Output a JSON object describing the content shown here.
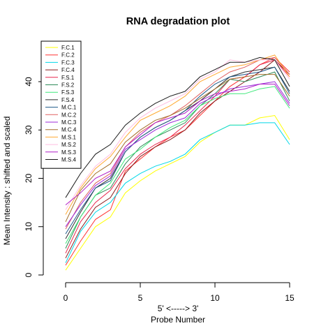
{
  "chart_data": {
    "type": "line",
    "title": "RNA degradation plot",
    "xlabel_top": "5' <-----> 3'",
    "xlabel": "Probe Number",
    "ylabel": "Mean Intensity : shifted and scaled",
    "xlim": [
      0,
      15
    ],
    "ylim": [
      0,
      46
    ],
    "xticks": [
      0,
      5,
      10,
      15
    ],
    "yticks": [
      0,
      10,
      20,
      30,
      40
    ],
    "legend_position": "top-left",
    "x": [
      0,
      1,
      2,
      3,
      4,
      5,
      6,
      7,
      8,
      9,
      10,
      11,
      12,
      13,
      14,
      15
    ],
    "series": [
      {
        "name": "F.C.1",
        "color": "#ffff00",
        "values": [
          1.0,
          5.5,
          10.0,
          12.0,
          17.0,
          19.5,
          21.5,
          23.0,
          24.5,
          27.5,
          29.5,
          31.0,
          31.0,
          32.5,
          33.0,
          28.0
        ]
      },
      {
        "name": "F.C.2",
        "color": "#ff3333",
        "values": [
          2.0,
          7.0,
          11.5,
          13.5,
          21.5,
          24.0,
          26.5,
          28.5,
          30.0,
          33.0,
          36.0,
          39.0,
          41.0,
          43.5,
          45.0,
          42.0
        ]
      },
      {
        "name": "F.C.3",
        "color": "#00d7e8",
        "values": [
          2.5,
          9.0,
          13.0,
          15.0,
          19.0,
          21.0,
          22.5,
          23.5,
          25.0,
          28.0,
          29.5,
          31.0,
          31.0,
          31.5,
          31.5,
          27.0
        ]
      },
      {
        "name": "F.C.4",
        "color": "#8b1a1a",
        "values": [
          3.5,
          9.5,
          14.0,
          16.0,
          21.0,
          24.5,
          26.5,
          28.0,
          30.0,
          33.5,
          36.0,
          38.0,
          40.0,
          42.0,
          44.5,
          41.5
        ]
      },
      {
        "name": "F.S.1",
        "color": "#e8264d",
        "values": [
          4.5,
          11.0,
          15.0,
          17.5,
          22.0,
          25.0,
          27.0,
          28.5,
          31.0,
          34.0,
          37.0,
          40.5,
          41.0,
          43.5,
          44.5,
          41.0
        ]
      },
      {
        "name": "F.S.2",
        "color": "#2e8b57",
        "values": [
          5.5,
          12.0,
          16.5,
          18.0,
          23.0,
          26.5,
          28.5,
          30.0,
          31.5,
          35.0,
          37.5,
          40.5,
          40.0,
          41.0,
          42.0,
          36.0
        ]
      },
      {
        "name": "F.S.3",
        "color": "#3ee87a",
        "values": [
          6.5,
          12.0,
          16.5,
          19.0,
          24.0,
          26.0,
          28.5,
          30.5,
          32.0,
          35.0,
          36.5,
          37.5,
          37.5,
          38.5,
          39.0,
          34.5
        ]
      },
      {
        "name": "F.S.4",
        "color": "#2f2f2f",
        "values": [
          7.5,
          13.0,
          18.0,
          20.0,
          25.5,
          28.5,
          30.5,
          32.0,
          34.0,
          36.0,
          38.5,
          41.0,
          42.0,
          42.5,
          43.0,
          38.0
        ]
      },
      {
        "name": "M.C.1",
        "color": "#1e5a8a",
        "values": [
          8.5,
          13.5,
          18.0,
          19.5,
          25.5,
          28.5,
          30.5,
          32.0,
          34.0,
          37.0,
          39.5,
          41.0,
          41.5,
          42.0,
          43.0,
          37.5
        ]
      },
      {
        "name": "M.C.2",
        "color": "#e06060",
        "values": [
          9.5,
          15.0,
          19.0,
          21.0,
          26.5,
          29.5,
          31.5,
          33.0,
          35.0,
          37.5,
          40.0,
          42.0,
          43.0,
          44.5,
          45.0,
          41.5
        ]
      },
      {
        "name": "M.C.3",
        "color": "#9c2bd9",
        "values": [
          10.0,
          14.5,
          18.5,
          20.5,
          26.0,
          28.0,
          30.0,
          31.5,
          32.5,
          35.5,
          37.0,
          38.5,
          39.0,
          39.5,
          40.0,
          35.5
        ]
      },
      {
        "name": "M.C.4",
        "color": "#a36f2a",
        "values": [
          11.0,
          17.5,
          21.0,
          23.0,
          27.5,
          30.0,
          32.0,
          33.0,
          34.5,
          36.5,
          38.5,
          40.5,
          41.0,
          41.5,
          41.5,
          37.0
        ]
      },
      {
        "name": "M.S.1",
        "color": "#ffaa33",
        "values": [
          12.5,
          18.0,
          22.0,
          24.5,
          28.5,
          32.0,
          33.5,
          35.0,
          37.0,
          40.0,
          41.5,
          43.0,
          43.5,
          44.5,
          45.5,
          41.0
        ]
      },
      {
        "name": "M.S.2",
        "color": "#ffbde0",
        "values": [
          13.5,
          18.5,
          22.5,
          25.0,
          29.5,
          32.5,
          34.5,
          36.0,
          37.5,
          40.5,
          42.0,
          44.5,
          44.0,
          44.5,
          44.5,
          40.5
        ]
      },
      {
        "name": "M.S.3",
        "color": "#b01ec8",
        "values": [
          14.5,
          17.0,
          20.0,
          21.5,
          26.5,
          29.0,
          31.5,
          32.5,
          33.5,
          36.0,
          37.5,
          38.0,
          38.5,
          39.5,
          39.5,
          35.0
        ]
      },
      {
        "name": "M.S.4",
        "color": "#1a1a1a",
        "values": [
          16.0,
          21.0,
          25.0,
          27.0,
          31.0,
          33.5,
          35.5,
          37.0,
          38.0,
          41.0,
          42.5,
          44.0,
          44.0,
          45.0,
          44.5,
          39.0
        ]
      }
    ]
  }
}
